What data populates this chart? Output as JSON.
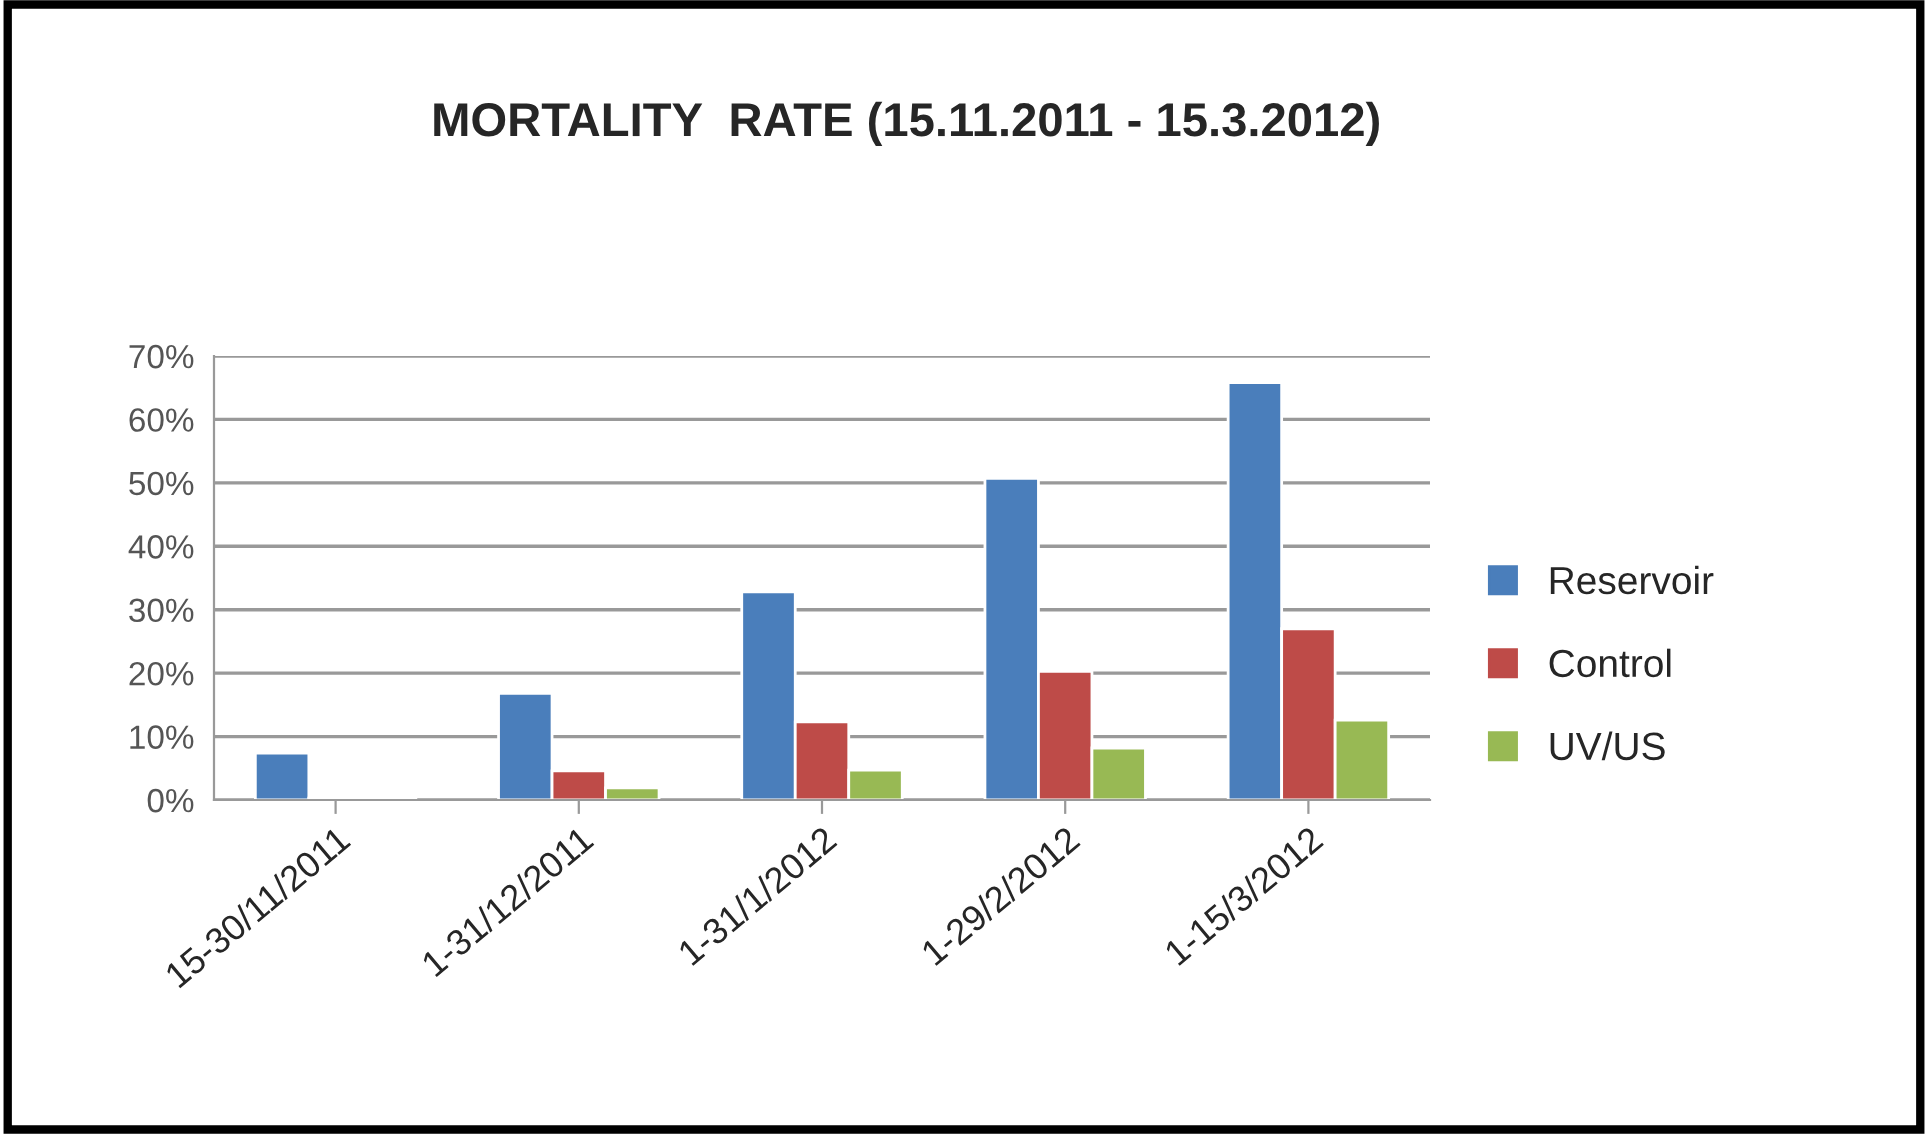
{
  "chart_data": {
    "type": "bar",
    "title": "MORTALITY  RATE (15.11.2011 - 15.3.2012)",
    "categories": [
      "15-30/11/2011",
      "1-31/12/2011",
      "1-31/1/2012",
      "1-29/2/2012",
      "1-15/3/2012"
    ],
    "series": [
      {
        "name": "Reservoir",
        "color": "#4a7ebb",
        "values": [
          7.4,
          16.8,
          32.8,
          50.7,
          65.8
        ]
      },
      {
        "name": "Control",
        "color": "#be4b48",
        "values": [
          0.3,
          4.6,
          12.3,
          20.3,
          27.0
        ]
      },
      {
        "name": "UV/US",
        "color": "#98b954",
        "values": [
          0.2,
          1.9,
          4.7,
          8.2,
          12.6
        ]
      }
    ],
    "ylim": [
      0,
      70
    ],
    "yticks": [
      {
        "value": 0,
        "label": "0%"
      },
      {
        "value": 10,
        "label": "10%"
      },
      {
        "value": 20,
        "label": "20%"
      },
      {
        "value": 30,
        "label": "30%"
      },
      {
        "value": 40,
        "label": "40%"
      },
      {
        "value": 50,
        "label": "50%"
      },
      {
        "value": 60,
        "label": "60%"
      },
      {
        "value": 70,
        "label": "70%"
      }
    ],
    "grid": "y",
    "legend": "right"
  }
}
